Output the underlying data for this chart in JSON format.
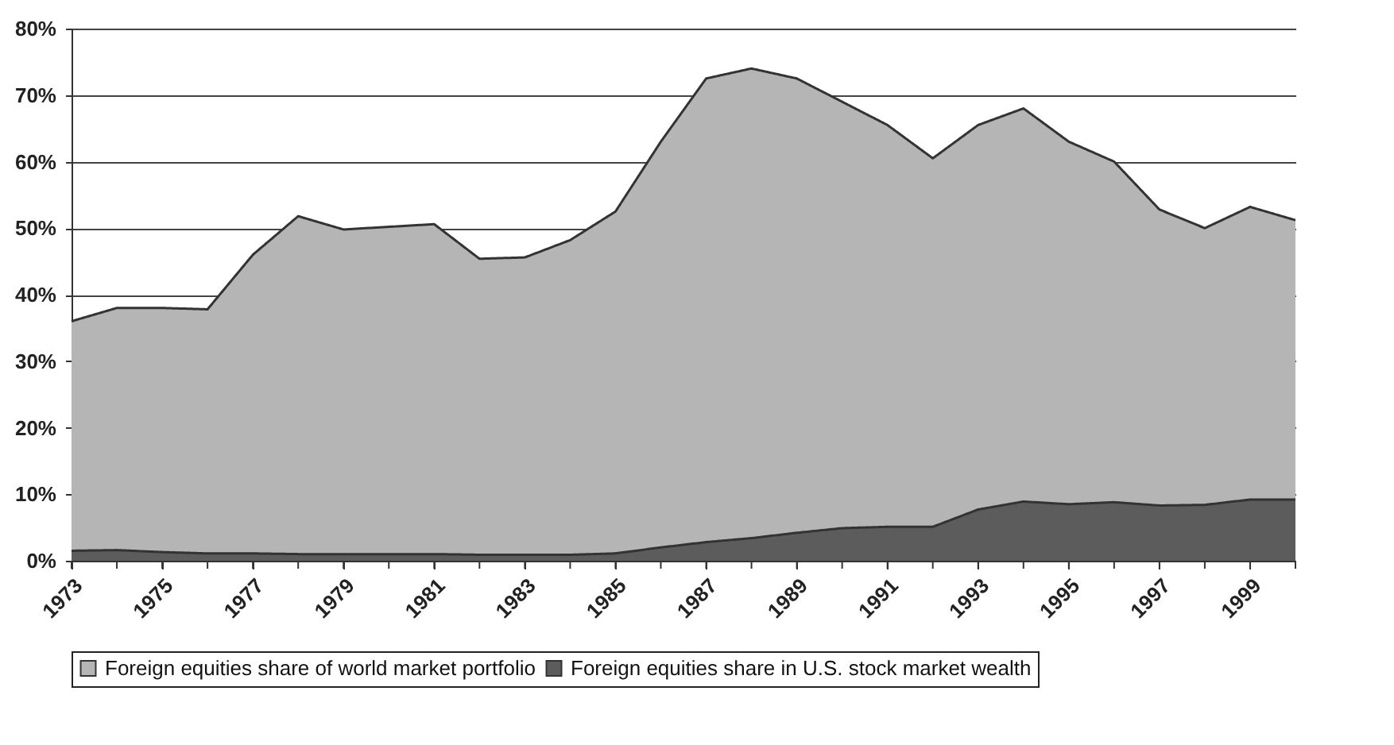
{
  "chart_data": {
    "type": "area",
    "x": [
      1973,
      1974,
      1975,
      1976,
      1977,
      1978,
      1979,
      1980,
      1981,
      1982,
      1983,
      1984,
      1985,
      1986,
      1987,
      1988,
      1989,
      1990,
      1991,
      1992,
      1993,
      1994,
      1995,
      1996,
      1997,
      1998,
      1999,
      2000
    ],
    "series": [
      {
        "name": "Foreign equities share of world market portfolio",
        "color": "#b5b5b5",
        "values": [
          36,
          38,
          38,
          37.8,
          46,
          51.8,
          49.8,
          50.2,
          50.6,
          45.4,
          45.6,
          48.2,
          52.5,
          63,
          72.5,
          74,
          72.5,
          69,
          65.5,
          60.5,
          65.5,
          68,
          63,
          60,
          52.8,
          50,
          53.2,
          51.2
        ]
      },
      {
        "name": "Foreign equities share in U.S. stock market wealth",
        "color": "#5c5c5c",
        "values": [
          1.5,
          1.6,
          1.3,
          1.1,
          1.1,
          1,
          1,
          1,
          1,
          0.9,
          0.9,
          0.9,
          1.1,
          2,
          2.8,
          3.4,
          4.2,
          4.9,
          5.1,
          5.1,
          7.7,
          8.9,
          8.5,
          8.8,
          8.3,
          8.4,
          9.2,
          9.2
        ]
      }
    ],
    "xlim": [
      1973,
      2000
    ],
    "xticks": [
      {
        "value": 1973,
        "label": "1973"
      },
      {
        "value": 1974,
        "label": null
      },
      {
        "value": 1975,
        "label": "1975"
      },
      {
        "value": 1976,
        "label": null
      },
      {
        "value": 1977,
        "label": "1977"
      },
      {
        "value": 1978,
        "label": null
      },
      {
        "value": 1979,
        "label": "1979"
      },
      {
        "value": 1980,
        "label": null
      },
      {
        "value": 1981,
        "label": "1981"
      },
      {
        "value": 1982,
        "label": null
      },
      {
        "value": 1983,
        "label": "1983"
      },
      {
        "value": 1984,
        "label": null
      },
      {
        "value": 1985,
        "label": "1985"
      },
      {
        "value": 1986,
        "label": null
      },
      {
        "value": 1987,
        "label": "1987"
      },
      {
        "value": 1988,
        "label": null
      },
      {
        "value": 1989,
        "label": "1989"
      },
      {
        "value": 1990,
        "label": null
      },
      {
        "value": 1991,
        "label": "1991"
      },
      {
        "value": 1992,
        "label": null
      },
      {
        "value": 1993,
        "label": "1993"
      },
      {
        "value": 1994,
        "label": null
      },
      {
        "value": 1995,
        "label": "1995"
      },
      {
        "value": 1996,
        "label": null
      },
      {
        "value": 1997,
        "label": "1997"
      },
      {
        "value": 1998,
        "label": null
      },
      {
        "value": 1999,
        "label": "1999"
      },
      {
        "value": 2000,
        "label": null
      }
    ],
    "ylim": [
      0,
      80
    ],
    "yticks": [
      {
        "value": 0,
        "label": "0%"
      },
      {
        "value": 10,
        "label": "10%"
      },
      {
        "value": 20,
        "label": "20%"
      },
      {
        "value": 30,
        "label": "30%"
      },
      {
        "value": 40,
        "label": "40%"
      },
      {
        "value": 50,
        "label": "50%"
      },
      {
        "value": 60,
        "label": "60%"
      },
      {
        "value": 70,
        "label": "70%"
      },
      {
        "value": 80,
        "label": "80%"
      }
    ],
    "grid": "y",
    "legend": "bottom",
    "marker": "none"
  }
}
